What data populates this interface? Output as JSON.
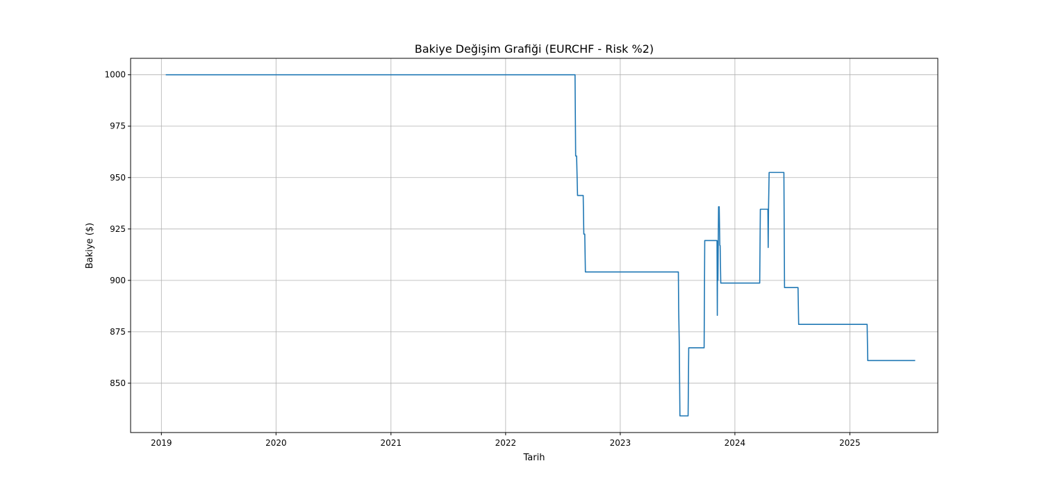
{
  "chart_data": {
    "type": "line",
    "title": "Bakiye Değişim Grafiği (EURCHF - Risk %2)",
    "xlabel": "Tarih",
    "ylabel": "Bakiye ($)",
    "x_ticks": [
      "2019",
      "2020",
      "2021",
      "2022",
      "2023",
      "2024",
      "2025"
    ],
    "y_ticks": [
      850,
      875,
      900,
      925,
      950,
      975,
      1000
    ],
    "xlim": [
      "2018-09-25",
      "2025-10-08"
    ],
    "ylim": [
      826,
      1008
    ],
    "grid": true,
    "line_color": "#1f77b4",
    "series": [
      {
        "x": [
          "2019-01-15",
          "2022-08-10",
          "2022-08-12",
          "2022-08-15",
          "2022-08-18",
          "2022-09-05",
          "2022-09-07",
          "2022-09-10",
          "2022-09-12",
          "2023-07-05",
          "2023-07-06",
          "2023-07-08",
          "2023-07-10",
          "2023-07-12",
          "2023-07-15",
          "2023-08-05",
          "2023-08-07",
          "2023-09-25",
          "2023-09-27",
          "2023-11-05",
          "2023-11-06",
          "2023-11-07",
          "2023-11-08",
          "2023-11-09",
          "2023-11-10",
          "2023-11-12",
          "2023-11-14",
          "2023-11-15",
          "2023-11-17",
          "2023-11-19",
          "2023-11-20",
          "2023-11-25",
          "2023-11-27",
          "2024-03-20",
          "2024-03-22",
          "2024-04-15",
          "2024-04-16",
          "2024-04-17",
          "2024-04-19",
          "2024-04-22",
          "2024-06-05",
          "2024-06-07",
          "2024-07-20",
          "2024-07-22",
          "2025-02-25",
          "2025-02-27",
          "2025-07-28"
        ],
        "y": [
          1000,
          1000,
          960.5,
          960.5,
          941.3,
          941.3,
          922.5,
          922.5,
          904.1,
          904.1,
          886.0,
          868.3,
          834.1,
          834.1,
          834.1,
          834.1,
          867.2,
          867.2,
          919.4,
          919.4,
          883.0,
          919.0,
          900.0,
          918.0,
          935.8,
          935.8,
          917.0,
          917.0,
          898.7,
          898.7,
          898.7,
          898.7,
          898.7,
          898.7,
          934.6,
          934.6,
          916.0,
          934.6,
          952.5,
          952.5,
          952.5,
          896.5,
          896.5,
          878.6,
          878.6,
          861.0,
          861.0
        ]
      }
    ]
  }
}
